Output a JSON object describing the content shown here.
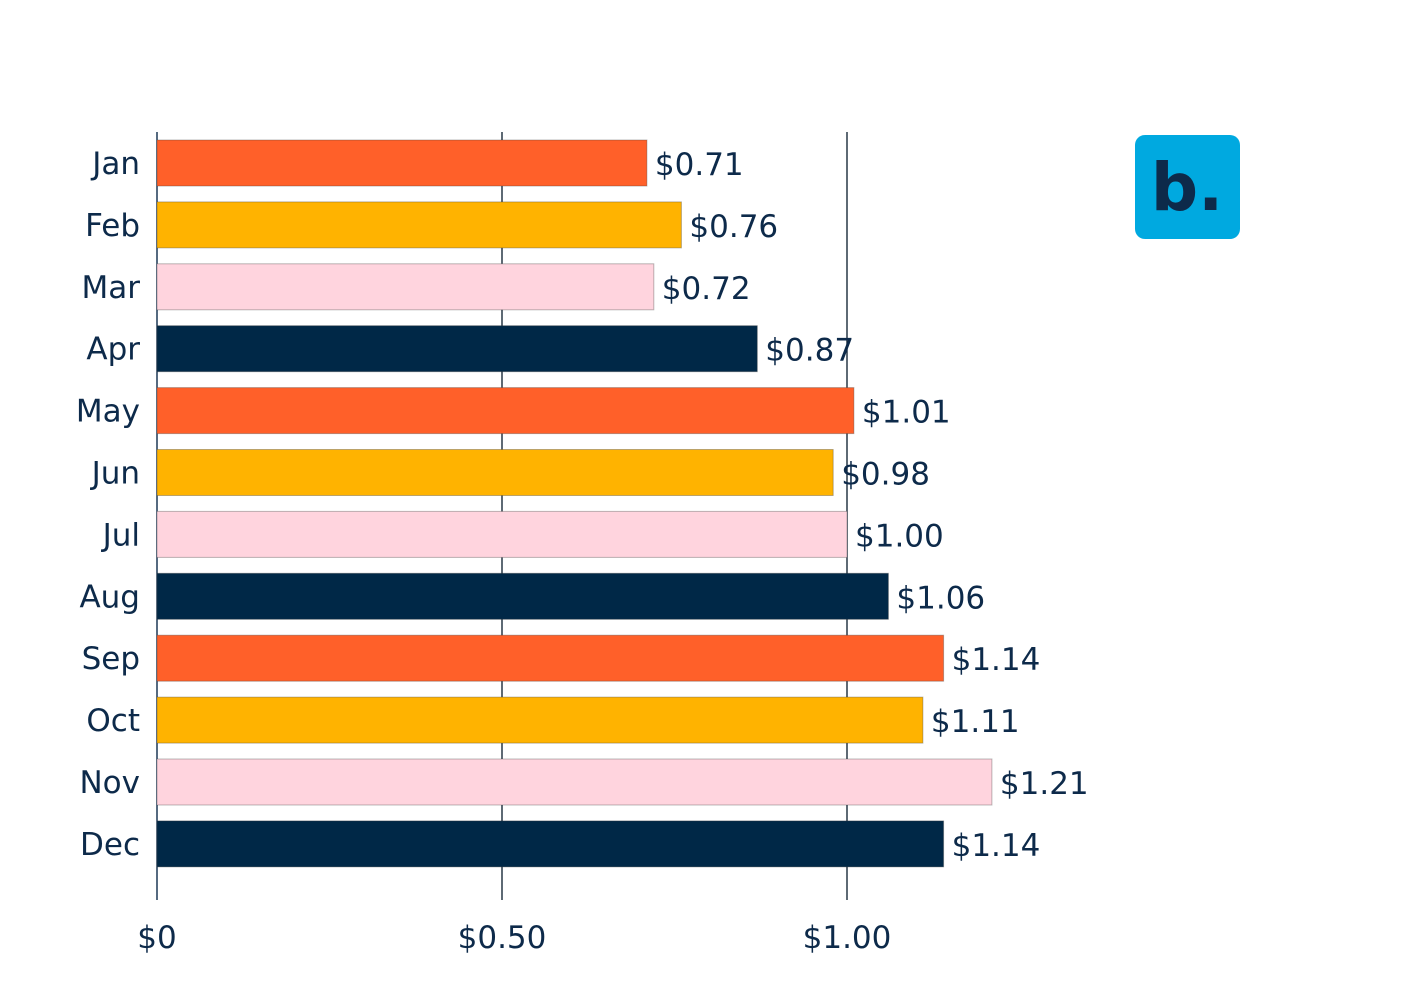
{
  "colors": {
    "orange": "#ff6029",
    "yellow": "#ffb300",
    "pink": "#ffd4de",
    "navy": "#002847",
    "text": "#0d2a4a",
    "logo_bg": "#00a9e0",
    "logo_fg": "#ffffff"
  },
  "logo": {
    "icon": "brand-b-icon",
    "text": "b."
  },
  "chart_data": {
    "type": "bar",
    "orientation": "horizontal",
    "categories": [
      "Jan",
      "Feb",
      "Mar",
      "Apr",
      "May",
      "Jun",
      "Jul",
      "Aug",
      "Sep",
      "Oct",
      "Nov",
      "Dec"
    ],
    "values": [
      0.71,
      0.76,
      0.72,
      0.87,
      1.01,
      0.98,
      1.0,
      1.06,
      1.14,
      1.11,
      1.21,
      1.14
    ],
    "value_labels": [
      "$0.71",
      "$0.76",
      "$0.72",
      "$0.87",
      "$1.01",
      "$0.98",
      "$1.00",
      "$1.06",
      "$1.14",
      "$1.11",
      "$1.21",
      "$1.14"
    ],
    "bar_colors": [
      "#ff6029",
      "#ffb300",
      "#ffd4de",
      "#002847",
      "#ff6029",
      "#ffb300",
      "#ffd4de",
      "#002847",
      "#ff6029",
      "#ffb300",
      "#ffd4de",
      "#002847"
    ],
    "x_ticks": [
      0,
      0.5,
      1.0
    ],
    "x_tick_labels": [
      "$0",
      "$0.50",
      "$1.00"
    ],
    "xlim": [
      0,
      1.5
    ],
    "title": "",
    "xlabel": "",
    "ylabel": "",
    "grid": "vertical lines at ticks",
    "legend": "none"
  }
}
